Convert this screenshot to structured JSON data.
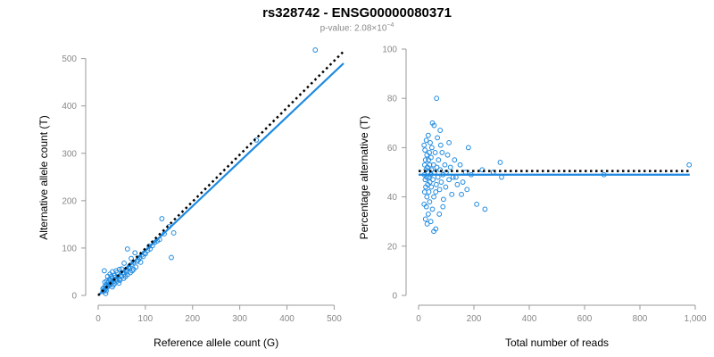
{
  "header": {
    "title": "rs328742 - ENSG00000080371",
    "pvalue_prefix": "p-value: 2.08×10",
    "pvalue_exponent": "−4"
  },
  "colors": {
    "points": "#1f8ae0",
    "fit_line": "#1f8ae0",
    "reference_line": "#000000",
    "axis": "#999999"
  },
  "chart_data": [
    {
      "type": "scatter",
      "xlabel": "Reference allele count (G)",
      "ylabel": "Alternative allele count (T)",
      "xlim": [
        0,
        520
      ],
      "ylim": [
        0,
        520
      ],
      "xticks": [
        0,
        100,
        200,
        300,
        400,
        500
      ],
      "yticks": [
        0,
        100,
        200,
        300,
        400,
        500
      ],
      "xtick_labels": [
        "0",
        "100",
        "200",
        "300",
        "400",
        "500"
      ],
      "ytick_labels": [
        "0",
        "100",
        "200",
        "300",
        "400",
        "500"
      ],
      "fit_line": {
        "x": [
          0,
          520
        ],
        "y": [
          0,
          490
        ]
      },
      "reference_line": {
        "x": [
          0,
          520
        ],
        "y": [
          0,
          515
        ],
        "style": "dotted"
      },
      "points": [
        [
          460,
          518
        ],
        [
          335,
          328
        ],
        [
          135,
          162
        ],
        [
          150,
          145
        ],
        [
          130,
          118
        ],
        [
          160,
          132
        ],
        [
          155,
          80
        ],
        [
          120,
          112
        ],
        [
          110,
          98
        ],
        [
          100,
          88
        ],
        [
          95,
          82
        ],
        [
          88,
          80
        ],
        [
          82,
          72
        ],
        [
          75,
          70
        ],
        [
          70,
          78
        ],
        [
          65,
          58
        ],
        [
          60,
          50
        ],
        [
          62,
          98
        ],
        [
          55,
          68
        ],
        [
          52,
          48
        ],
        [
          48,
          42
        ],
        [
          45,
          55
        ],
        [
          42,
          38
        ],
        [
          40,
          48
        ],
        [
          38,
          35
        ],
        [
          35,
          42
        ],
        [
          33,
          30
        ],
        [
          30,
          36
        ],
        [
          28,
          25
        ],
        [
          26,
          32
        ],
        [
          24,
          22
        ],
        [
          22,
          28
        ],
        [
          20,
          18
        ],
        [
          18,
          24
        ],
        [
          16,
          14
        ],
        [
          15,
          20
        ],
        [
          14,
          12
        ],
        [
          12,
          16
        ],
        [
          12,
          10
        ],
        [
          10,
          14
        ],
        [
          10,
          8
        ],
        [
          13,
          52
        ],
        [
          20,
          40
        ],
        [
          25,
          45
        ],
        [
          30,
          50
        ],
        [
          35,
          25
        ],
        [
          40,
          30
        ],
        [
          45,
          35
        ],
        [
          50,
          40
        ],
        [
          55,
          45
        ],
        [
          60,
          55
        ],
        [
          65,
          60
        ],
        [
          70,
          65
        ],
        [
          75,
          55
        ],
        [
          80,
          60
        ],
        [
          85,
          75
        ],
        [
          90,
          70
        ],
        [
          105,
          95
        ],
        [
          115,
          105
        ],
        [
          125,
          115
        ],
        [
          140,
          130
        ],
        [
          18,
          30
        ],
        [
          22,
          20
        ],
        [
          28,
          40
        ],
        [
          32,
          22
        ],
        [
          36,
          38
        ],
        [
          44,
          26
        ],
        [
          50,
          56
        ],
        [
          58,
          40
        ],
        [
          68,
          48
        ],
        [
          14,
          28
        ],
        [
          17,
          10
        ],
        [
          24,
          34
        ],
        [
          30,
          18
        ],
        [
          38,
          52
        ],
        [
          46,
          32
        ],
        [
          54,
          36
        ],
        [
          62,
          44
        ],
        [
          72,
          52
        ],
        [
          78,
          90
        ],
        [
          92,
          85
        ],
        [
          98,
          90
        ],
        [
          108,
          104
        ],
        [
          16,
          4
        ]
      ]
    },
    {
      "type": "scatter",
      "xlabel": "Total number of reads",
      "ylabel": "Percentage alternative (T)",
      "xlim": [
        0,
        1000
      ],
      "ylim": [
        0,
        100
      ],
      "xticks": [
        0,
        200,
        400,
        600,
        800,
        1000
      ],
      "yticks": [
        0,
        20,
        40,
        60,
        80,
        100
      ],
      "xtick_labels": [
        "0",
        "200",
        "400",
        "600",
        "800",
        "1,000"
      ],
      "ytick_labels": [
        "0",
        "20",
        "40",
        "60",
        "80",
        "100"
      ],
      "fit_line": {
        "x": [
          0,
          980
        ],
        "y": [
          49,
          49
        ]
      },
      "reference_line": {
        "x": [
          0,
          980
        ],
        "y": [
          50.5,
          50.5
        ],
        "style": "dotted"
      },
      "points": [
        [
          978,
          53
        ],
        [
          670,
          49
        ],
        [
          300,
          48
        ],
        [
          295,
          54
        ],
        [
          240,
          35
        ],
        [
          210,
          37
        ],
        [
          180,
          60
        ],
        [
          175,
          43
        ],
        [
          170,
          50
        ],
        [
          160,
          46
        ],
        [
          150,
          53
        ],
        [
          140,
          45
        ],
        [
          130,
          55
        ],
        [
          125,
          48
        ],
        [
          120,
          41
        ],
        [
          115,
          52
        ],
        [
          110,
          47
        ],
        [
          105,
          57
        ],
        [
          100,
          50
        ],
        [
          98,
          44
        ],
        [
          95,
          53
        ],
        [
          90,
          39
        ],
        [
          88,
          49
        ],
        [
          85,
          58
        ],
        [
          82,
          46
        ],
        [
          80,
          61
        ],
        [
          78,
          51
        ],
        [
          76,
          43
        ],
        [
          75,
          33
        ],
        [
          72,
          55
        ],
        [
          70,
          48
        ],
        [
          68,
          64
        ],
        [
          66,
          52
        ],
        [
          65,
          80
        ],
        [
          64,
          45
        ],
        [
          62,
          42
        ],
        [
          60,
          58
        ],
        [
          58,
          50
        ],
        [
          56,
          69
        ],
        [
          55,
          40
        ],
        [
          54,
          53
        ],
        [
          52,
          47
        ],
        [
          50,
          70
        ],
        [
          50,
          35
        ],
        [
          48,
          60
        ],
        [
          47,
          51
        ],
        [
          46,
          44
        ],
        [
          45,
          56
        ],
        [
          44,
          30
        ],
        [
          43,
          49
        ],
        [
          42,
          62
        ],
        [
          41,
          46
        ],
        [
          40,
          53
        ],
        [
          40,
          38
        ],
        [
          39,
          58
        ],
        [
          38,
          48
        ],
        [
          37,
          42
        ],
        [
          36,
          55
        ],
        [
          35,
          33
        ],
        [
          35,
          65
        ],
        [
          34,
          50
        ],
        [
          33,
          45
        ],
        [
          32,
          52
        ],
        [
          31,
          29
        ],
        [
          30,
          57
        ],
        [
          30,
          40
        ],
        [
          29,
          48
        ],
        [
          28,
          63
        ],
        [
          28,
          36
        ],
        [
          27,
          51
        ],
        [
          26,
          44
        ],
        [
          25,
          55
        ],
        [
          25,
          31
        ],
        [
          24,
          47
        ],
        [
          23,
          59
        ],
        [
          22,
          42
        ],
        [
          22,
          53
        ],
        [
          21,
          49
        ],
        [
          20,
          37
        ],
        [
          20,
          61
        ],
        [
          62,
          27
        ],
        [
          88,
          36
        ],
        [
          110,
          62
        ],
        [
          135,
          48
        ],
        [
          155,
          41
        ],
        [
          190,
          49
        ],
        [
          230,
          51
        ],
        [
          270,
          50
        ],
        [
          55,
          26
        ],
        [
          78,
          67
        ]
      ]
    }
  ]
}
